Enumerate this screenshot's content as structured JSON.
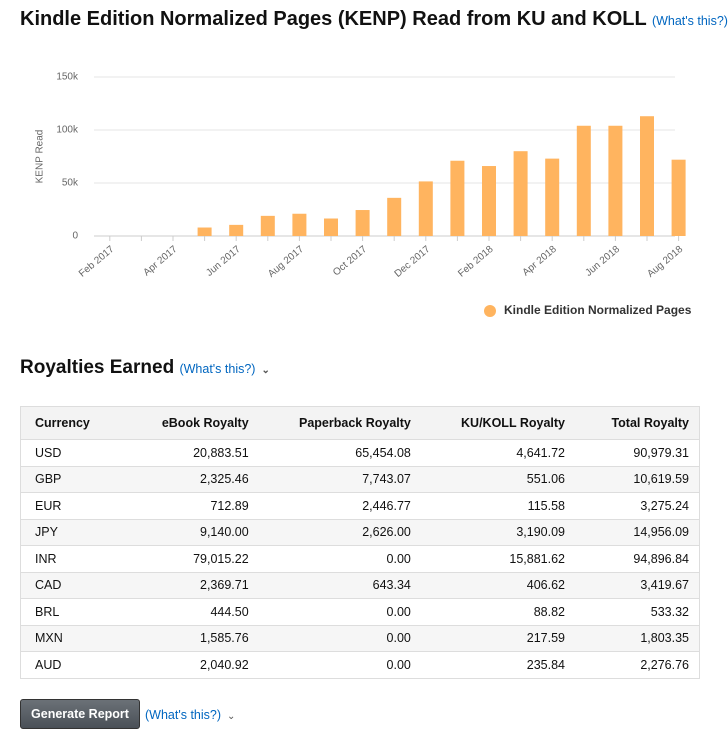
{
  "chart_data": {
    "type": "bar",
    "title": "Kindle Edition Normalized Pages (KENP) Read from KU and KOLL",
    "title_link": "(What's this?)",
    "y_label": "KENP Read",
    "categories": [
      "Feb 2017",
      null,
      "Apr 2017",
      null,
      "Jun 2017",
      null,
      "Aug 2017",
      null,
      "Oct 2017",
      null,
      "Dec 2017",
      null,
      "Feb 2018",
      null,
      "Apr 2018",
      null,
      "Jun 2018",
      null,
      "Aug 2018"
    ],
    "series": [
      {
        "name": "Kindle Edition Normalized Pages",
        "color": "#ffb45f",
        "values": [
          0,
          0,
          0,
          8000,
          10500,
          19000,
          21000,
          16500,
          24500,
          36000,
          51500,
          71000,
          66000,
          80000,
          73000,
          104000,
          104000,
          113000,
          72000
        ]
      }
    ],
    "ylim": [
      0,
      150000
    ],
    "yticks": [
      0,
      {
        "value": 50000,
        "label": "50k"
      },
      {
        "value": 100000,
        "label": "100k"
      },
      {
        "value": 150000,
        "label": "150k"
      }
    ],
    "grid": true,
    "legend": "bottom-right"
  },
  "royalties": {
    "title": "Royalties Earned",
    "link": "(What's this?)",
    "columns": [
      "Currency",
      "eBook Royalty",
      "Paperback Royalty",
      "KU/KOLL Royalty",
      "Total Royalty"
    ],
    "rows": [
      [
        "USD",
        "20,883.51",
        "65,454.08",
        "4,641.72",
        "90,979.31"
      ],
      [
        "GBP",
        "2,325.46",
        "7,743.07",
        "551.06",
        "10,619.59"
      ],
      [
        "EUR",
        "712.89",
        "2,446.77",
        "115.58",
        "3,275.24"
      ],
      [
        "JPY",
        "9,140.00",
        "2,626.00",
        "3,190.09",
        "14,956.09"
      ],
      [
        "INR",
        "79,015.22",
        "0.00",
        "15,881.62",
        "94,896.84"
      ],
      [
        "CAD",
        "2,369.71",
        "643.34",
        "406.62",
        "3,419.67"
      ],
      [
        "BRL",
        "444.50",
        "0.00",
        "88.82",
        "533.32"
      ],
      [
        "MXN",
        "1,585.76",
        "0.00",
        "217.59",
        "1,803.35"
      ],
      [
        "AUD",
        "2,040.92",
        "0.00",
        "235.84",
        "2,276.76"
      ]
    ]
  },
  "report": {
    "button": "Generate Report",
    "link": "(What's this?)"
  }
}
